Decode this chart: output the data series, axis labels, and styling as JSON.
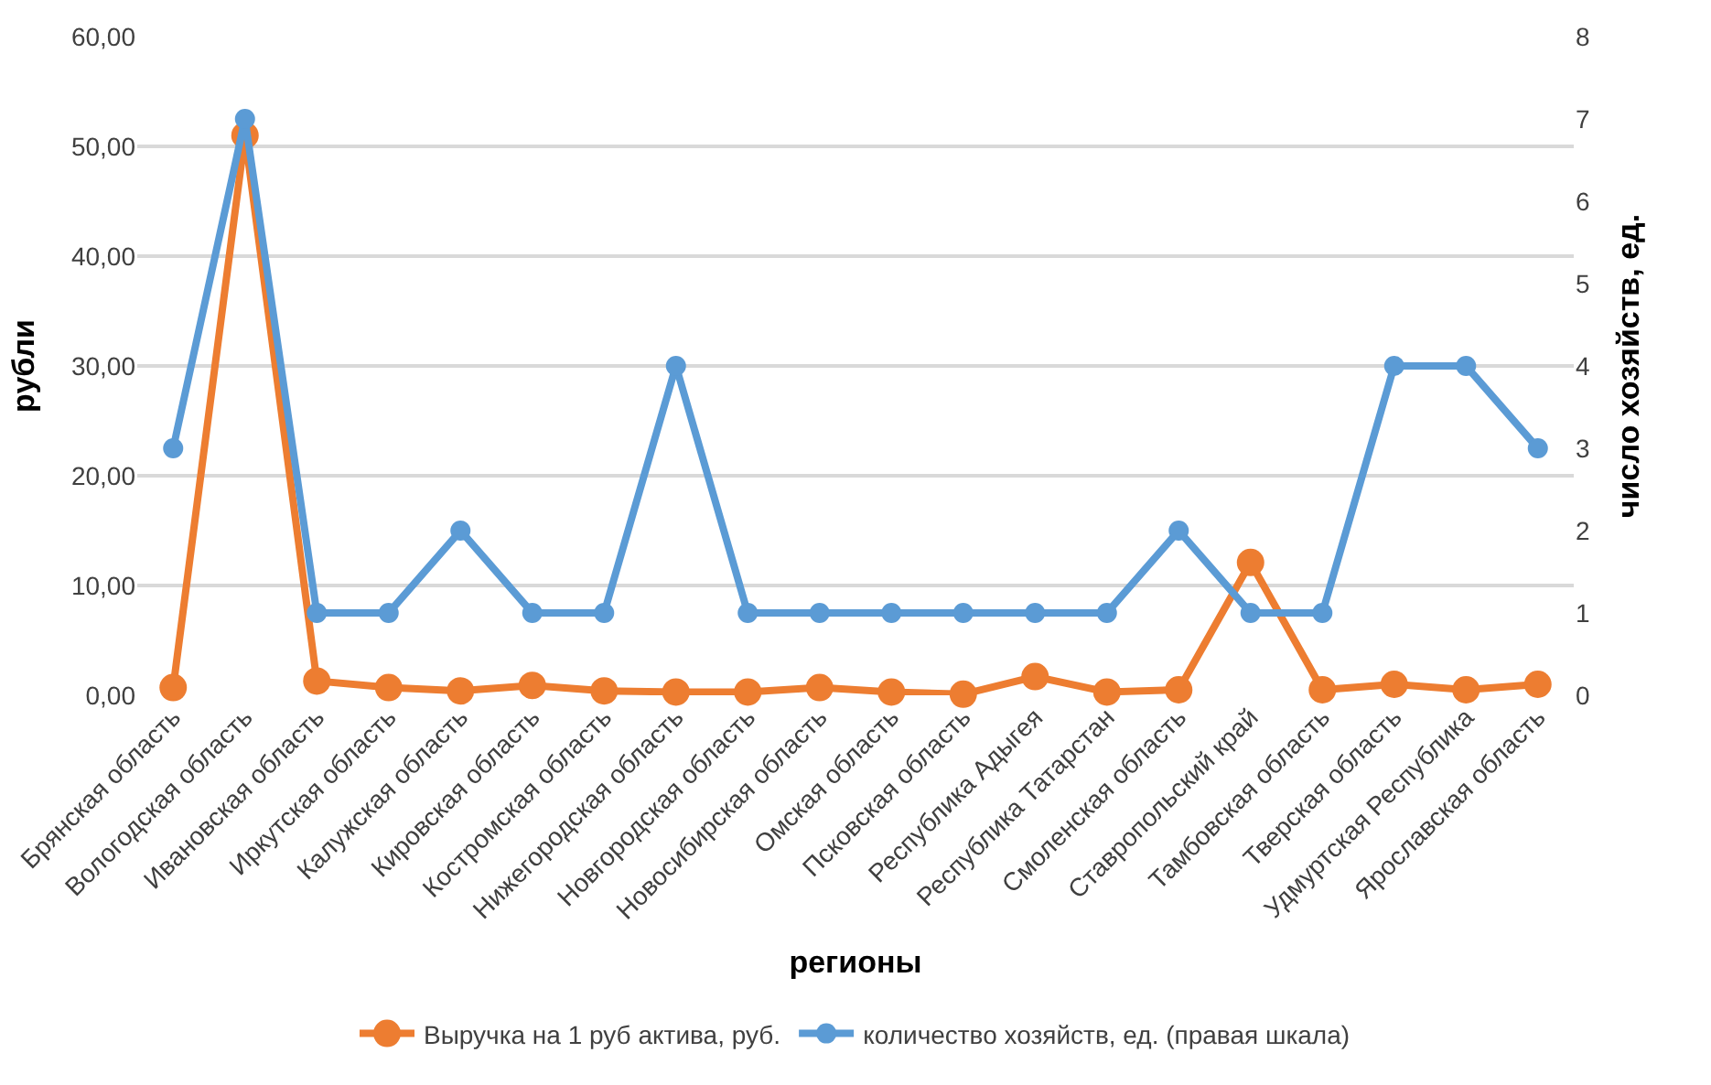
{
  "chart_data": {
    "type": "line",
    "xlabel": "регионы",
    "ylabel": "рубли",
    "y2label": "число хозяйств, ед.",
    "categories": [
      "Брянская область",
      "Вологодская область",
      "Ивановская область",
      "Иркутская область",
      "Калужская область",
      "Кировская область",
      "Костромская область",
      "Нижегородская область",
      "Новгородская область",
      "Новосибирская область",
      "Омская область",
      "Псковская область",
      "Республика Адыгея",
      "Республика Татарстан",
      "Смоленская область",
      "Ставропольский край",
      "Тамбовская область",
      "Тверская область",
      "Удмуртская Республика",
      "Ярославская область"
    ],
    "series": [
      {
        "name": "Выручка на 1 руб актива, руб.",
        "color": "#ed7d31",
        "values": [
          0.7,
          51,
          1.3,
          0.7,
          0.4,
          0.9,
          0.4,
          0.3,
          0.3,
          0.7,
          0.3,
          0.1,
          1.7,
          0.3,
          0.5,
          12.1,
          0.5,
          1.0,
          0.5,
          1.0
        ]
      },
      {
        "name": "количество хозяйств, ед. (правая шкала)",
        "color": "#5b9bd5",
        "axis": "y2",
        "values": [
          3,
          7,
          1,
          1,
          2,
          1,
          1,
          4,
          1,
          1,
          1,
          1,
          1,
          1,
          2,
          1,
          1,
          4,
          4,
          3
        ]
      }
    ],
    "ylim": [
      0,
      60
    ],
    "yticks": [
      {
        "value": 0,
        "label": "0,00"
      },
      {
        "value": 10,
        "label": "10,00"
      },
      {
        "value": 20,
        "label": "20,00"
      },
      {
        "value": 30,
        "label": "30,00"
      },
      {
        "value": 40,
        "label": "40,00"
      },
      {
        "value": 50,
        "label": "50,00"
      },
      {
        "value": 60,
        "label": "60,00"
      }
    ],
    "y2lim": [
      0,
      8
    ],
    "y2ticks": [
      0,
      1,
      2,
      3,
      4,
      5,
      6,
      7,
      8
    ],
    "grid": "y",
    "legend": "bottom",
    "marker": "circle",
    "line_style": "solid"
  }
}
